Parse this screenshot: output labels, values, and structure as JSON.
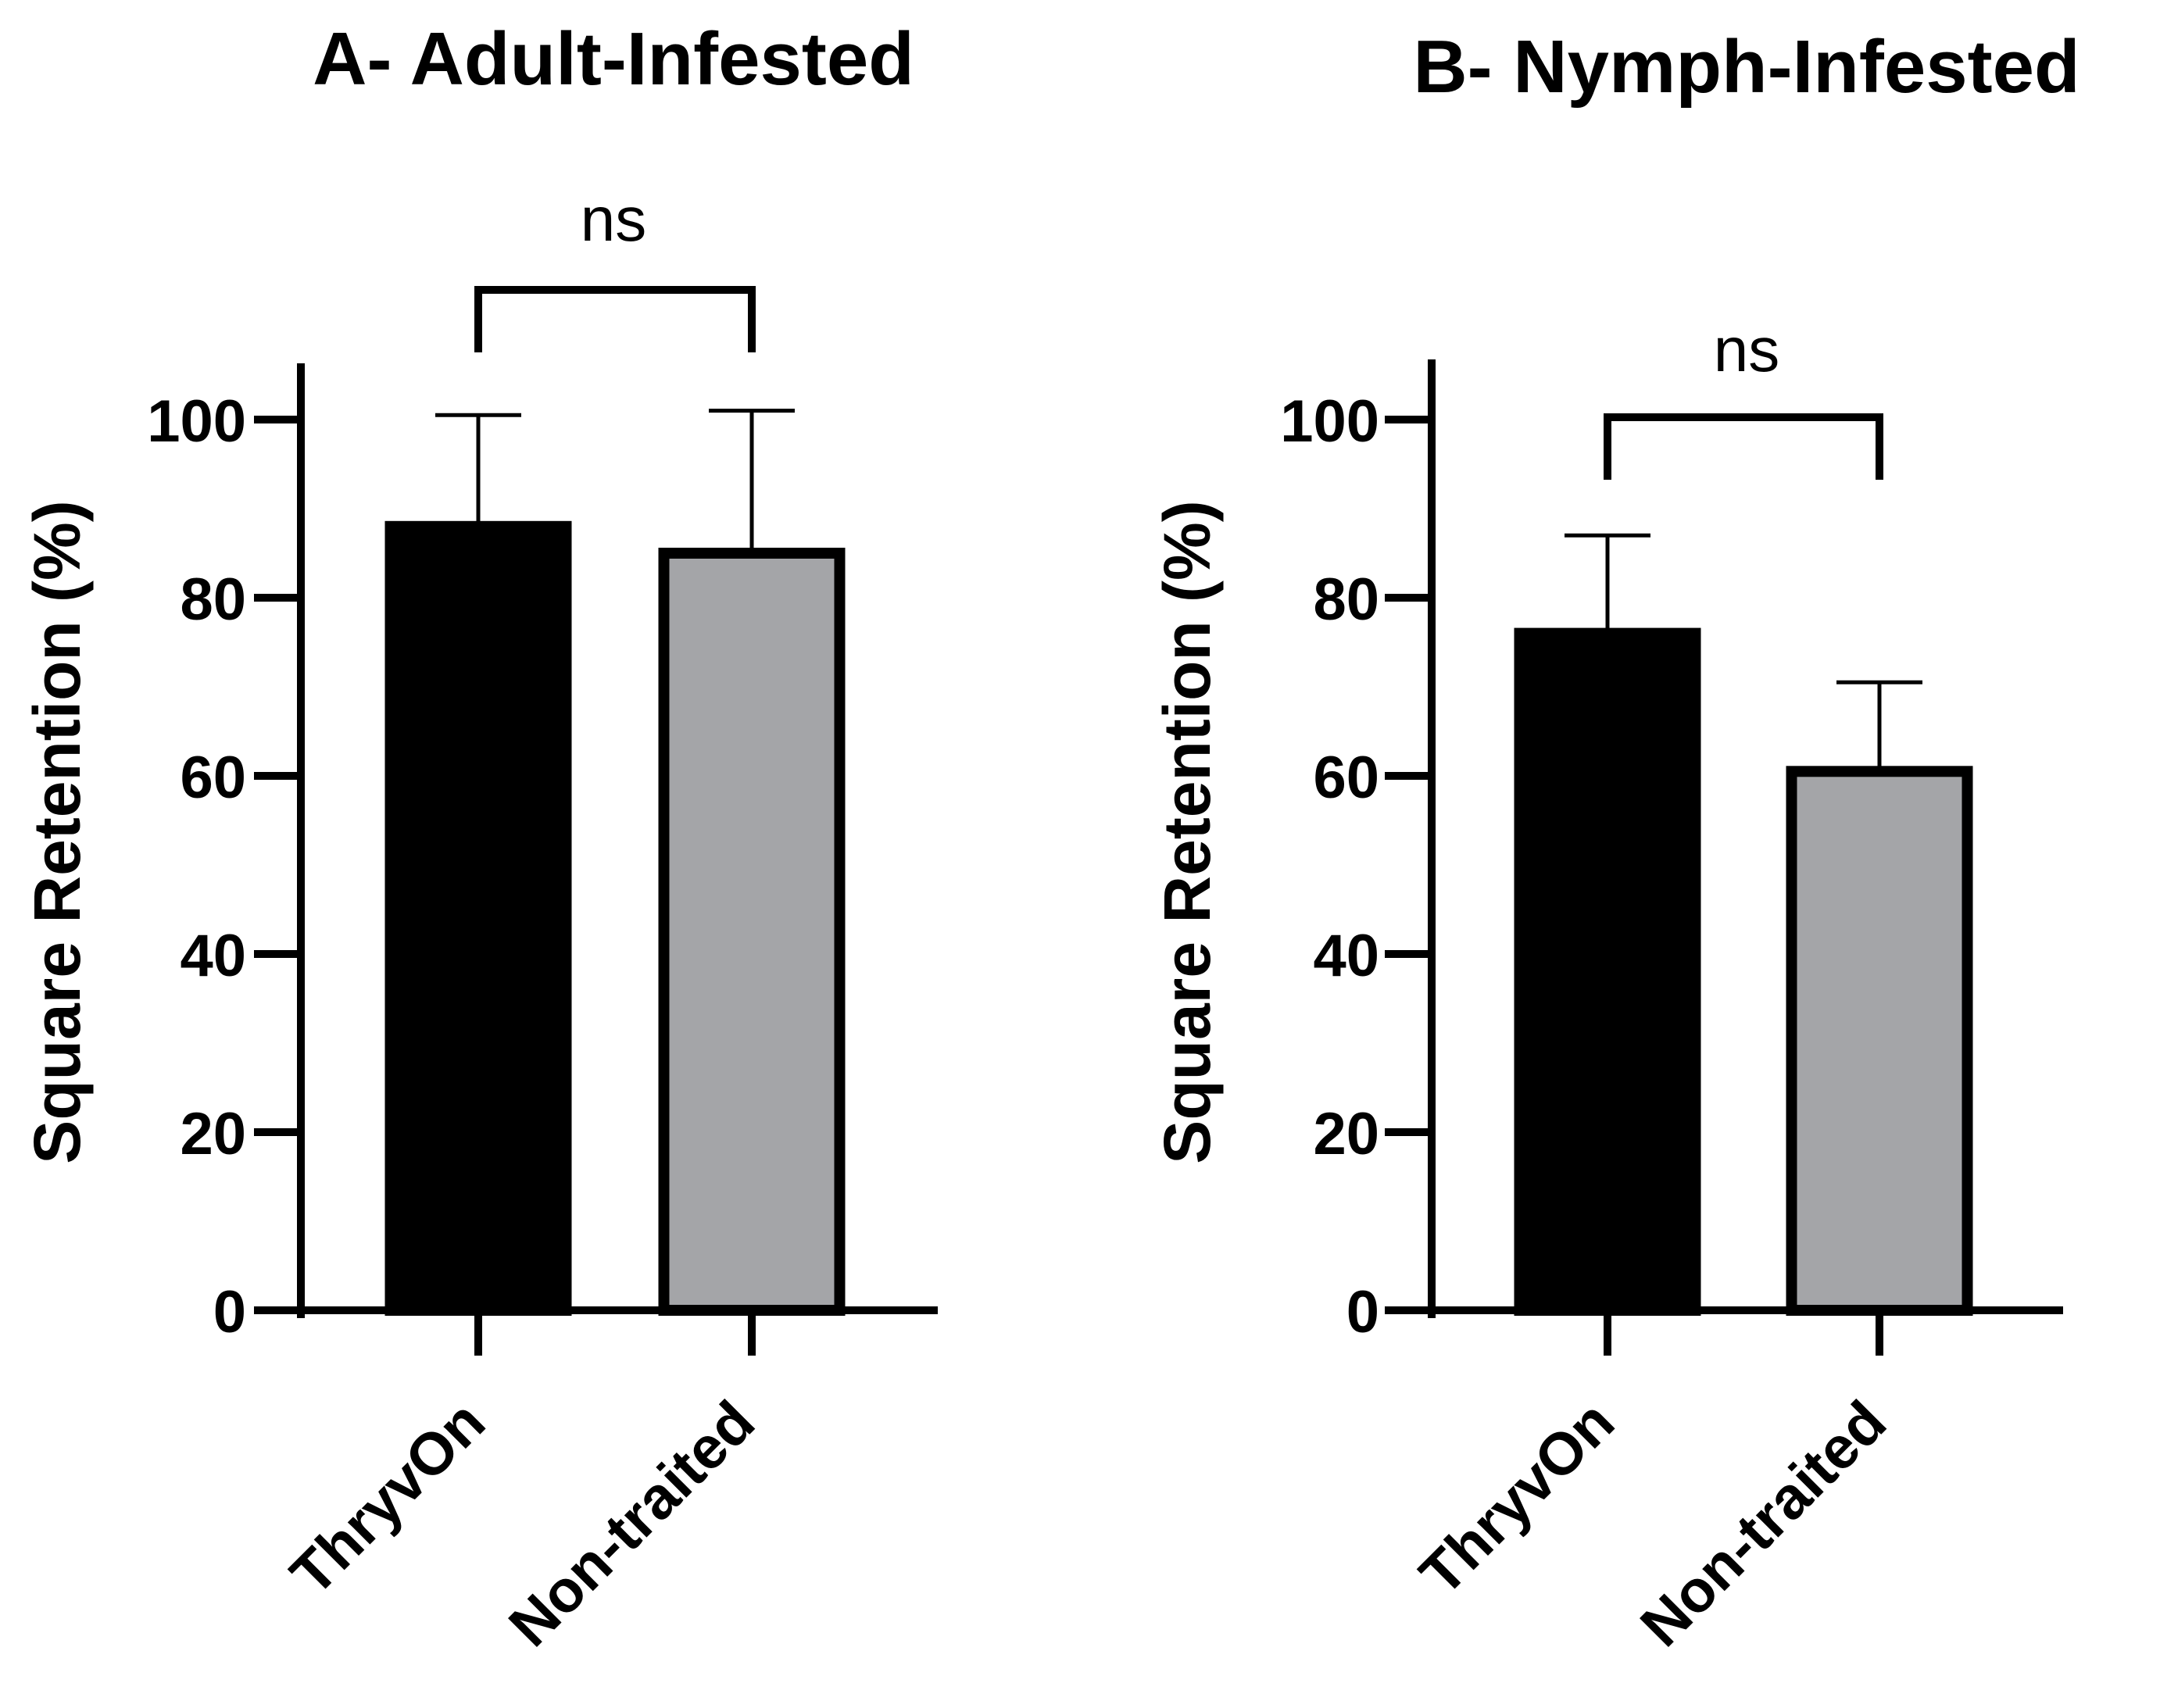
{
  "chart_data": [
    {
      "type": "bar",
      "title": "A- Adult-Infested",
      "xlabel": "",
      "ylabel": "Square Retention (%)",
      "ylim": [
        0,
        105
      ],
      "yticks": [
        0,
        20,
        40,
        60,
        80,
        100
      ],
      "ytick_labels": [
        "0",
        "20",
        "40",
        "60",
        "80",
        "100"
      ],
      "categories": [
        "ThryvOn",
        "Non-traited"
      ],
      "values": [
        88,
        85
      ],
      "error": [
        12.5,
        16
      ],
      "colors": [
        "#000000",
        "#a4a5a8"
      ],
      "significance": {
        "from": 0,
        "to": 1,
        "label": "ns"
      }
    },
    {
      "type": "bar",
      "title": "B- Nymph-Infested",
      "xlabel": "",
      "ylabel": "Square Retention (%)",
      "ylim": [
        0,
        105
      ],
      "yticks": [
        0,
        20,
        40,
        60,
        80,
        100
      ],
      "ytick_labels": [
        "0",
        "20",
        "40",
        "60",
        "80",
        "100"
      ],
      "categories": [
        "ThryvOn",
        "Non-traited"
      ],
      "values": [
        76,
        60.5
      ],
      "error": [
        11,
        10
      ],
      "colors": [
        "#000000",
        "#a4a5a8"
      ],
      "significance": {
        "from": 0,
        "to": 1,
        "label": "ns"
      }
    }
  ]
}
